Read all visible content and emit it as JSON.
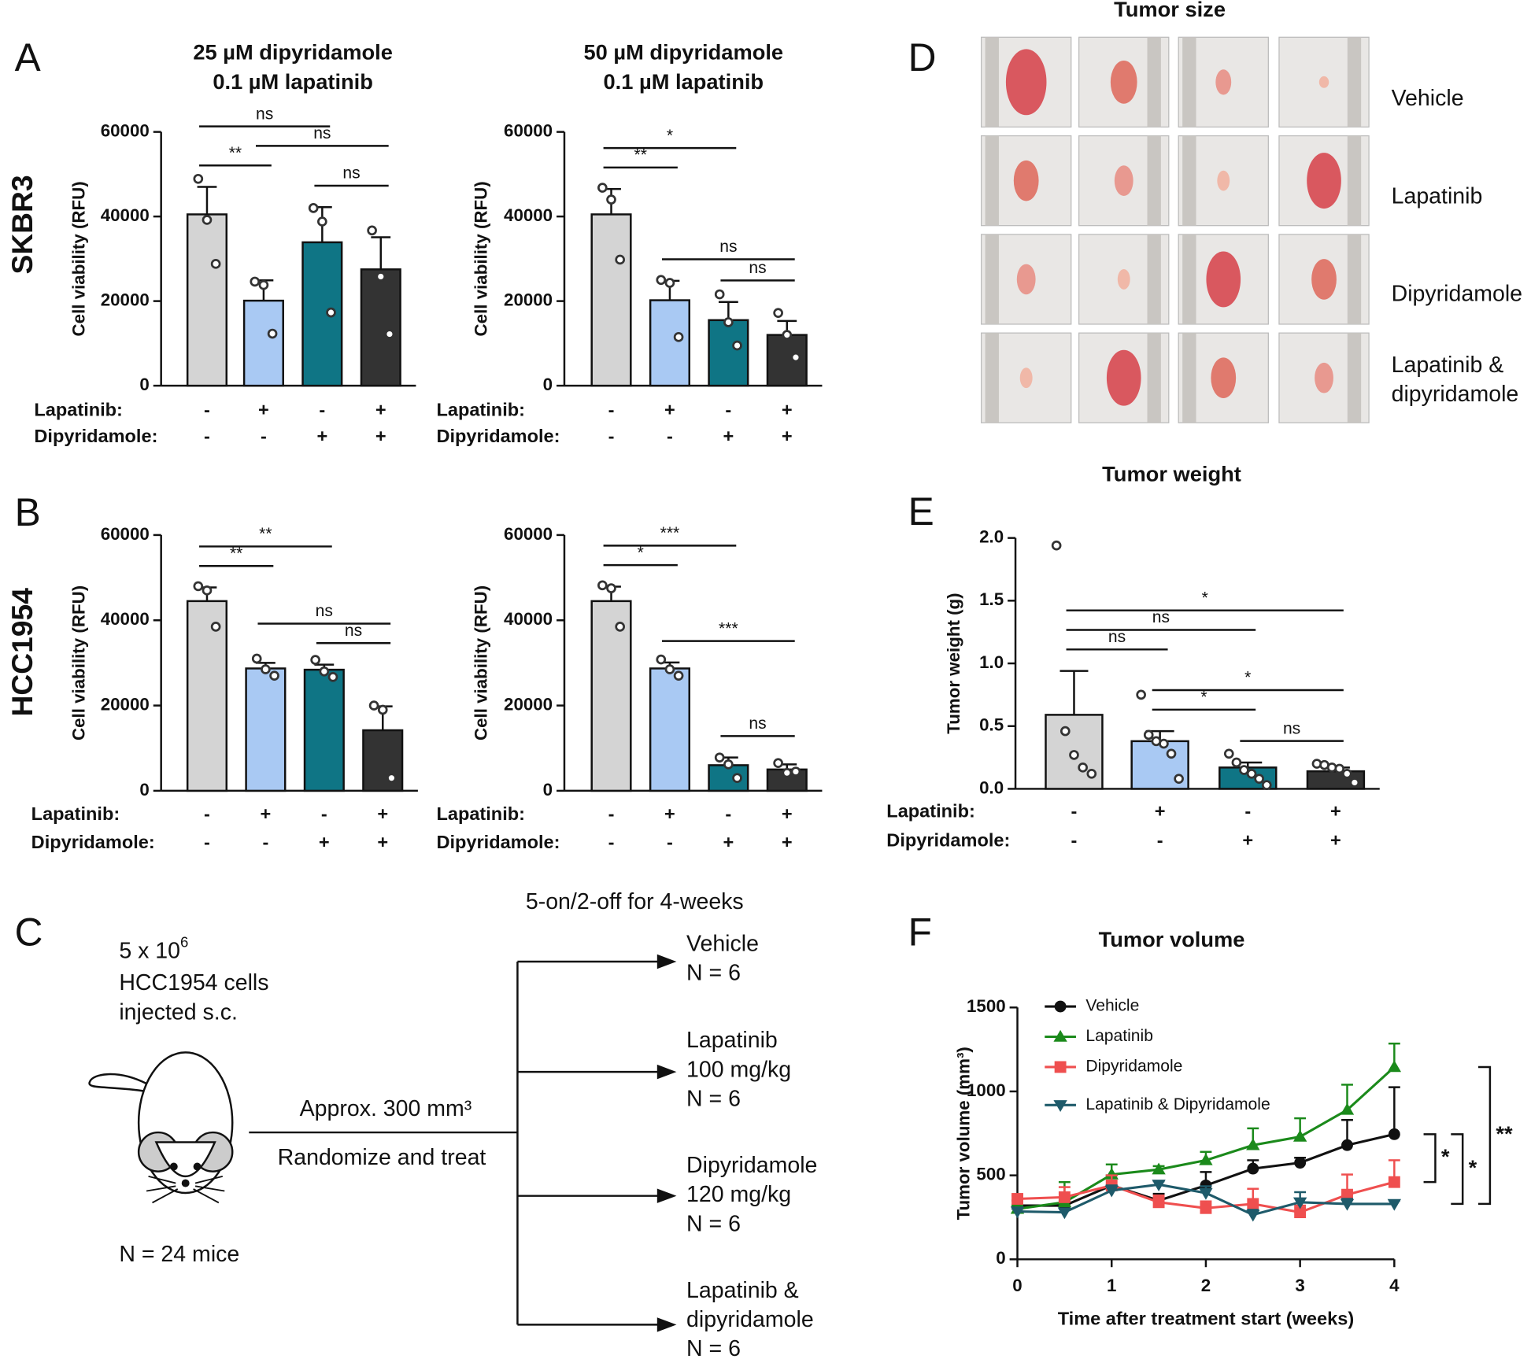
{
  "panel_labels": [
    "A",
    "B",
    "C",
    "D",
    "E",
    "F"
  ],
  "row_labels": [
    "SKBR3",
    "HCC1954"
  ],
  "chart_data": [
    {
      "type": "bar",
      "title": [
        "25 µM dipyridamole",
        "0.1 µM lapatinib"
      ],
      "ylabel": "Cell viability (RFU)",
      "ylim": [
        0,
        60000
      ],
      "yticks": [
        0,
        20000,
        40000,
        60000
      ],
      "values": [
        40500,
        20100,
        33900,
        27500
      ],
      "errors": [
        6500,
        4800,
        8300,
        7600
      ],
      "colors": [
        "#d4d4d4",
        "#a9c9f3",
        "#0f7585",
        "#333333"
      ],
      "points": [
        [
          48900,
          39200,
          28800
        ],
        [
          24600,
          23800,
          12300
        ],
        [
          42000,
          38800,
          17300
        ],
        [
          36700,
          25800,
          12200
        ]
      ],
      "conditions": [
        {
          "label": "Lapatinib:",
          "signs": [
            "-",
            "+",
            "-",
            "+"
          ]
        },
        {
          "label": "Dipyridamole:",
          "signs": [
            "-",
            "-",
            "+",
            "+"
          ]
        }
      ],
      "comparisons": [
        {
          "groups": [
            0,
            2
          ],
          "label": "ns"
        },
        {
          "groups": [
            1,
            3
          ],
          "label": "ns"
        },
        {
          "groups": [
            0,
            1
          ],
          "label": "**"
        },
        {
          "groups": [
            2,
            3
          ],
          "label": "ns"
        }
      ]
    },
    {
      "type": "bar",
      "title": [
        "50 µM dipyridamole",
        "0.1 µM lapatinib"
      ],
      "ylabel": "Cell viability (RFU)",
      "ylim": [
        0,
        60000
      ],
      "yticks": [
        0,
        20000,
        40000,
        60000
      ],
      "values": [
        40500,
        20200,
        15500,
        12000
      ],
      "errors": [
        6000,
        4600,
        4300,
        3300
      ],
      "colors": [
        "#d4d4d4",
        "#a9c9f3",
        "#0f7585",
        "#333333"
      ],
      "points": [
        [
          46800,
          44000,
          29800
        ],
        [
          25000,
          24300,
          11500
        ],
        [
          21600,
          15000,
          9500
        ],
        [
          17200,
          12000,
          6700
        ]
      ],
      "conditions": [
        {
          "label": "Lapatinib:",
          "signs": [
            "-",
            "+",
            "-",
            "+"
          ]
        },
        {
          "label": "Dipyridamole:",
          "signs": [
            "-",
            "-",
            "+",
            "+"
          ]
        }
      ],
      "comparisons": [
        {
          "groups": [
            0,
            2
          ],
          "label": "*"
        },
        {
          "groups": [
            0,
            1
          ],
          "label": "**"
        },
        {
          "groups": [
            1,
            3
          ],
          "label": "ns"
        },
        {
          "groups": [
            2,
            3
          ],
          "label": "ns"
        }
      ]
    },
    {
      "type": "bar",
      "ylabel": "Cell viability (RFU)",
      "ylim": [
        0,
        60000
      ],
      "yticks": [
        0,
        20000,
        40000,
        60000
      ],
      "values": [
        44500,
        28700,
        28400,
        14200
      ],
      "errors": [
        3200,
        1300,
        1200,
        5600
      ],
      "colors": [
        "#d4d4d4",
        "#a9c9f3",
        "#0f7585",
        "#333333"
      ],
      "points": [
        [
          48000,
          47000,
          38500
        ],
        [
          31000,
          28500,
          27000
        ],
        [
          30700,
          28000,
          26700
        ],
        [
          20000,
          19000,
          3000
        ]
      ],
      "conditions": [
        {
          "label": "Lapatinib:",
          "signs": [
            "-",
            "+",
            "-",
            "+"
          ]
        },
        {
          "label": "Dipyridamole:",
          "signs": [
            "-",
            "-",
            "+",
            "+"
          ]
        }
      ],
      "comparisons": [
        {
          "groups": [
            0,
            2
          ],
          "label": "**"
        },
        {
          "groups": [
            0,
            1
          ],
          "label": "**"
        },
        {
          "groups": [
            1,
            3
          ],
          "label": "ns"
        },
        {
          "groups": [
            2,
            3
          ],
          "label": "ns"
        }
      ]
    },
    {
      "type": "bar",
      "ylabel": "Cell viability (RFU)",
      "ylim": [
        0,
        60000
      ],
      "yticks": [
        0,
        20000,
        40000,
        60000
      ],
      "values": [
        44500,
        28700,
        6000,
        5000
      ],
      "errors": [
        3400,
        1400,
        1800,
        1200
      ],
      "colors": [
        "#d4d4d4",
        "#a9c9f3",
        "#0f7585",
        "#333333"
      ],
      "points": [
        [
          48200,
          47500,
          38500
        ],
        [
          30800,
          28500,
          27000
        ],
        [
          7800,
          6200,
          3000
        ],
        [
          6500,
          4200,
          4500
        ]
      ],
      "conditions": [
        {
          "label": "Lapatinib:",
          "signs": [
            "-",
            "+",
            "-",
            "+"
          ]
        },
        {
          "label": "Dipyridamole:",
          "signs": [
            "-",
            "-",
            "+",
            "+"
          ]
        }
      ],
      "comparisons": [
        {
          "groups": [
            0,
            2
          ],
          "label": "***"
        },
        {
          "groups": [
            0,
            1
          ],
          "label": "*"
        },
        {
          "groups": [
            1,
            3
          ],
          "label": "***"
        },
        {
          "groups": [
            2,
            3
          ],
          "label": "ns"
        }
      ]
    },
    {
      "type": "bar",
      "title": [
        "Tumor weight"
      ],
      "ylabel": "Tumor weight (g)",
      "ylim": [
        0,
        2
      ],
      "yticks": [
        {
          "value": 0,
          "label": "0.0"
        },
        0.5,
        {
          "value": 1,
          "label": "1.0"
        },
        1.5,
        {
          "value": 2,
          "label": "2.0"
        }
      ],
      "values": [
        0.59,
        0.38,
        0.17,
        0.14
      ],
      "errors": [
        0.35,
        0.08,
        0.04,
        0.03
      ],
      "colors": [
        "#d4d4d4",
        "#a9c9f3",
        "#0f7585",
        "#333333"
      ],
      "points": [
        [
          1.94,
          0.46,
          0.27,
          0.17,
          0.12
        ],
        [
          0.75,
          0.43,
          0.38,
          0.36,
          0.28,
          0.08
        ],
        [
          0.28,
          0.21,
          0.15,
          0.12,
          0.08,
          0.03
        ],
        [
          0.2,
          0.19,
          0.17,
          0.16,
          0.12,
          0.05
        ]
      ],
      "conditions": [
        {
          "label": "Lapatinib:",
          "signs": [
            "-",
            "+",
            "-",
            "+"
          ]
        },
        {
          "label": "Dipyridamole:",
          "signs": [
            "-",
            "-",
            "+",
            "+"
          ]
        }
      ],
      "comparisons": [
        {
          "groups": [
            0,
            3
          ],
          "label": "*"
        },
        {
          "groups": [
            0,
            2
          ],
          "label": "ns"
        },
        {
          "groups": [
            0,
            1
          ],
          "label": "ns"
        },
        {
          "groups": [
            1,
            3
          ],
          "label": "*"
        },
        {
          "groups": [
            1,
            2
          ],
          "label": "*"
        },
        {
          "groups": [
            2,
            3
          ],
          "label": "ns"
        }
      ]
    },
    {
      "type": "line",
      "title": "Tumor volume",
      "xlabel": "Time after treatment start (weeks)",
      "ylabel": "Tumor volume (mm³)",
      "x": [
        0,
        0.5,
        1,
        1.5,
        2,
        2.5,
        3,
        3.5,
        4
      ],
      "xlim": [
        0,
        4
      ],
      "xticks": [
        0,
        1,
        2,
        3,
        4
      ],
      "ylim": [
        0,
        1500
      ],
      "yticks": [
        0,
        500,
        1000,
        1500
      ],
      "series": [
        {
          "name": "Vehicle",
          "color": "#111111",
          "marker": "circle",
          "values": [
            320,
            320,
            440,
            350,
            440,
            540,
            575,
            680,
            745
          ],
          "errors": [
            30,
            30,
            60,
            40,
            80,
            50,
            30,
            150,
            280
          ]
        },
        {
          "name": "Lapatinib",
          "color": "#1b8a1b",
          "marker": "triangle-up",
          "values": [
            300,
            340,
            505,
            535,
            590,
            680,
            730,
            890,
            1145
          ],
          "errors": [
            20,
            120,
            60,
            20,
            50,
            100,
            110,
            150,
            140
          ]
        },
        {
          "name": "Dipyridamole",
          "color": "#ef4f4f",
          "marker": "square",
          "values": [
            360,
            370,
            440,
            340,
            305,
            330,
            280,
            385,
            460
          ],
          "errors": [
            20,
            60,
            60,
            40,
            40,
            90,
            40,
            120,
            130
          ]
        },
        {
          "name": "Lapatinib & Dipyridamole",
          "color": "#1e5a6a",
          "marker": "triangle-down",
          "values": [
            285,
            280,
            410,
            445,
            395,
            265,
            340,
            330,
            330
          ],
          "errors": [
            15,
            20,
            30,
            20,
            40,
            30,
            60,
            30,
            20
          ]
        }
      ],
      "comparisons": [
        {
          "series": [
            0,
            2
          ],
          "label": "*"
        },
        {
          "series": [
            0,
            3
          ],
          "label": "*"
        },
        {
          "series": [
            1,
            3
          ],
          "label": "**"
        }
      ]
    }
  ],
  "diagram": {
    "cells_base": "5 x 10",
    "cells_exp": "6",
    "cells_lines": [
      "HCC1954 cells",
      "injected s.c."
    ],
    "mice": "N = 24 mice",
    "step_lines": [
      "Approx. 300 mm³",
      "Randomize and treat"
    ],
    "schedule": "5-on/2-off for 4-weeks",
    "groups": [
      [
        "Vehicle",
        "N = 6"
      ],
      [
        "Lapatinib",
        "100 mg/kg",
        "N = 6"
      ],
      [
        "Dipyridamole",
        "120 mg/kg",
        "N = 6"
      ],
      [
        "Lapatinib &",
        "dipyridamole",
        "N = 6"
      ]
    ]
  },
  "photos": {
    "title": "Tumor size",
    "row_labels": [
      [
        "Vehicle"
      ],
      [
        "Lapatinib"
      ],
      [
        "Dipyridamole"
      ],
      [
        "Lapatinib &",
        "dipyridamole"
      ]
    ]
  }
}
